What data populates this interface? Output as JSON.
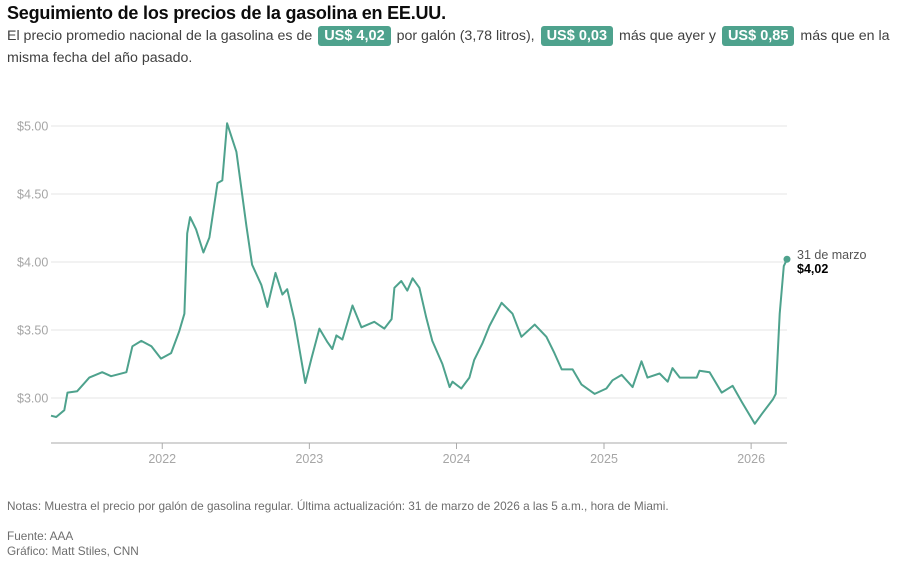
{
  "header": {
    "title": "Seguimiento de los precios de la gasolina en EE.UU.",
    "subtitle_parts": {
      "t1": "El precio promedio nacional de la gasolina es de",
      "b1": "US$ 4,02",
      "t2": "por galón (3,78 litros),",
      "b2": "US$ 0,03",
      "t3": "más que ayer y",
      "b3": "US$ 0,85",
      "t4": "más que en la misma fecha del año pasado."
    },
    "badge_color": "#4ea28d"
  },
  "chart_data": {
    "type": "line",
    "title": "",
    "xlabel": "",
    "ylabel": "",
    "xlim": [
      "2021-03-31",
      "2026-03-31"
    ],
    "ylim": [
      2.67,
      5.1
    ],
    "grid": true,
    "y_ticks": [
      3.0,
      3.5,
      4.0,
      4.5,
      5.0
    ],
    "y_tick_labels": [
      "$3.00",
      "$3.50",
      "$4.00",
      "$4.50",
      "$5.00"
    ],
    "x_ticks": [
      "2022-01-01",
      "2023-01-01",
      "2024-01-01",
      "2025-01-01",
      "2026-01-01"
    ],
    "x_tick_labels": [
      "2022",
      "2023",
      "2024",
      "2025",
      "2026"
    ],
    "line_color": "#4ea28d",
    "annotation": {
      "date": "2026-03-31",
      "label": "31 de marzo",
      "value_label": "$4,02"
    },
    "series": [
      {
        "points": [
          [
            "2021-03-31",
            2.87
          ],
          [
            "2021-04-13",
            2.86
          ],
          [
            "2021-05-03",
            2.91
          ],
          [
            "2021-05-11",
            3.04
          ],
          [
            "2021-06-04",
            3.05
          ],
          [
            "2021-07-04",
            3.15
          ],
          [
            "2021-08-05",
            3.19
          ],
          [
            "2021-08-27",
            3.16
          ],
          [
            "2021-10-04",
            3.19
          ],
          [
            "2021-10-19",
            3.38
          ],
          [
            "2021-11-10",
            3.42
          ],
          [
            "2021-12-05",
            3.38
          ],
          [
            "2021-12-29",
            3.29
          ],
          [
            "2022-01-23",
            3.33
          ],
          [
            "2022-02-12",
            3.49
          ],
          [
            "2022-02-25",
            3.62
          ],
          [
            "2022-03-04",
            4.21
          ],
          [
            "2022-03-11",
            4.33
          ],
          [
            "2022-03-26",
            4.24
          ],
          [
            "2022-04-13",
            4.07
          ],
          [
            "2022-04-28",
            4.18
          ],
          [
            "2022-05-18",
            4.58
          ],
          [
            "2022-05-30",
            4.6
          ],
          [
            "2022-06-11",
            5.02
          ],
          [
            "2022-07-04",
            4.81
          ],
          [
            "2022-07-29",
            4.26
          ],
          [
            "2022-08-12",
            3.98
          ],
          [
            "2022-09-04",
            3.83
          ],
          [
            "2022-09-19",
            3.67
          ],
          [
            "2022-10-09",
            3.92
          ],
          [
            "2022-10-26",
            3.76
          ],
          [
            "2022-11-07",
            3.8
          ],
          [
            "2022-11-25",
            3.57
          ],
          [
            "2022-12-22",
            3.11
          ],
          [
            "2023-01-06",
            3.29
          ],
          [
            "2023-01-26",
            3.51
          ],
          [
            "2023-02-15",
            3.41
          ],
          [
            "2023-02-27",
            3.36
          ],
          [
            "2023-03-09",
            3.46
          ],
          [
            "2023-03-24",
            3.43
          ],
          [
            "2023-04-18",
            3.68
          ],
          [
            "2023-05-10",
            3.52
          ],
          [
            "2023-06-11",
            3.56
          ],
          [
            "2023-07-06",
            3.51
          ],
          [
            "2023-07-24",
            3.58
          ],
          [
            "2023-07-31",
            3.81
          ],
          [
            "2023-08-17",
            3.86
          ],
          [
            "2023-09-01",
            3.79
          ],
          [
            "2023-09-14",
            3.88
          ],
          [
            "2023-10-01",
            3.81
          ],
          [
            "2023-10-18",
            3.59
          ],
          [
            "2023-11-02",
            3.42
          ],
          [
            "2023-11-27",
            3.25
          ],
          [
            "2023-12-15",
            3.08
          ],
          [
            "2023-12-22",
            3.12
          ],
          [
            "2024-01-13",
            3.07
          ],
          [
            "2024-02-02",
            3.15
          ],
          [
            "2024-02-14",
            3.28
          ],
          [
            "2024-03-05",
            3.4
          ],
          [
            "2024-03-23",
            3.53
          ],
          [
            "2024-04-22",
            3.7
          ],
          [
            "2024-05-19",
            3.62
          ],
          [
            "2024-06-10",
            3.45
          ],
          [
            "2024-07-13",
            3.54
          ],
          [
            "2024-08-11",
            3.45
          ],
          [
            "2024-08-31",
            3.33
          ],
          [
            "2024-09-18",
            3.21
          ],
          [
            "2024-10-15",
            3.21
          ],
          [
            "2024-11-06",
            3.1
          ],
          [
            "2024-12-09",
            3.03
          ],
          [
            "2025-01-07",
            3.07
          ],
          [
            "2025-01-22",
            3.13
          ],
          [
            "2025-02-14",
            3.17
          ],
          [
            "2025-03-13",
            3.08
          ],
          [
            "2025-04-04",
            3.27
          ],
          [
            "2025-04-19",
            3.15
          ],
          [
            "2025-05-19",
            3.18
          ],
          [
            "2025-06-08",
            3.12
          ],
          [
            "2025-06-20",
            3.22
          ],
          [
            "2025-07-08",
            3.15
          ],
          [
            "2025-08-19",
            3.15
          ],
          [
            "2025-08-26",
            3.2
          ],
          [
            "2025-09-20",
            3.19
          ],
          [
            "2025-10-20",
            3.04
          ],
          [
            "2025-11-16",
            3.09
          ],
          [
            "2025-12-09",
            2.97
          ],
          [
            "2026-01-10",
            2.81
          ],
          [
            "2026-01-27",
            2.88
          ],
          [
            "2026-02-24",
            2.99
          ],
          [
            "2026-03-03",
            3.03
          ],
          [
            "2026-03-13",
            3.62
          ],
          [
            "2026-03-23",
            3.97
          ],
          [
            "2026-03-31",
            4.02
          ]
        ]
      }
    ]
  },
  "footer": {
    "notes": "Notas: Muestra el precio por galón de gasolina regular. Última actualización: 31 de marzo de 2026 a las 5 a.m., hora de Miami.",
    "source": "Fuente: AAA",
    "credit": "Gráfico: Matt Stiles, CNN"
  }
}
